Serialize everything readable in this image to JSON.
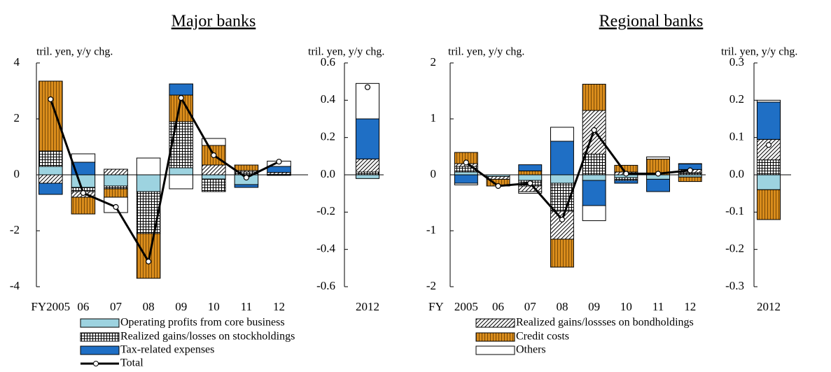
{
  "chart_data": [
    {
      "type": "bar",
      "title": "Major banks",
      "ylabel": "tril. yen, y/y chg.",
      "categories": [
        "FY2005",
        "06",
        "07",
        "08",
        "09",
        "10",
        "11",
        "12"
      ],
      "ylim": [
        -4,
        4
      ],
      "yticks": [
        -4,
        -2,
        0,
        2,
        4
      ],
      "series": [
        {
          "name": "Operating profits from core business",
          "color": "#9dd3e0",
          "values": [
            0.3,
            -0.45,
            -0.4,
            -0.6,
            0.25,
            -0.15,
            -0.35,
            -0.02
          ]
        },
        {
          "name": "Realized gains/losses on stockholdings",
          "color": "#ffffff",
          "pattern": "grid",
          "values": [
            0.55,
            -0.15,
            -0.1,
            -1.5,
            1.65,
            -0.45,
            0.1,
            0.015
          ]
        },
        {
          "name": "Realized gains/lossses on bondholdings",
          "color": "#ffffff",
          "pattern": "hatch",
          "values": [
            -0.3,
            -0.2,
            0.2,
            0,
            0,
            0.35,
            0.05,
            0.07
          ]
        },
        {
          "name": "Credit costs",
          "color": "#d98c1c",
          "pattern": "stripes",
          "values": [
            2.5,
            -0.6,
            -0.3,
            -1.6,
            0.95,
            0.7,
            0.2,
            0
          ]
        },
        {
          "name": "Tax-related expenses",
          "color": "#1f6fc5",
          "values": [
            -0.4,
            0.45,
            0,
            0,
            0.4,
            0,
            -0.1,
            0.215
          ]
        },
        {
          "name": "Others",
          "color": "#ffffff",
          "values": [
            0,
            0.3,
            -0.55,
            0.6,
            -0.5,
            0.25,
            0,
            0.19
          ]
        },
        {
          "name": "Total",
          "type": "line",
          "color": "#000000",
          "values": [
            2.7,
            -0.65,
            -1.15,
            -3.1,
            2.75,
            0.7,
            -0.1,
            0.47
          ]
        }
      ]
    },
    {
      "type": "bar",
      "ylabel": "tril. yen, y/y chg.",
      "categories": [
        "2012"
      ],
      "ylim": [
        -0.6,
        0.6
      ],
      "yticks": [
        -0.6,
        -0.4,
        -0.2,
        {
          "value": 0,
          "label": "0.0"
        },
        0.2,
        0.4,
        0.6
      ],
      "series": [
        {
          "values": [
            -0.02
          ]
        },
        {
          "values": [
            0.015
          ]
        },
        {
          "values": [
            0.07
          ]
        },
        {
          "values": [
            0
          ]
        },
        {
          "values": [
            0.215
          ]
        },
        {
          "values": [
            0.19
          ]
        },
        {
          "type": "line",
          "values": [
            0.47
          ]
        }
      ]
    },
    {
      "type": "bar",
      "title": "Regional banks",
      "ylabel": "tril. yen, y/y chg.",
      "xlabel": "FY",
      "categories": [
        "2005",
        "06",
        "07",
        "08",
        "09",
        "10",
        "11",
        "12"
      ],
      "ylim": [
        -2,
        2
      ],
      "yticks": [
        -2,
        -1,
        0,
        1,
        2
      ],
      "series": [
        {
          "values": [
            0.05,
            -0.03,
            -0.1,
            -0.15,
            -0.1,
            -0.05,
            -0.08,
            -0.04
          ]
        },
        {
          "values": [
            0.1,
            0,
            -0.1,
            -0.5,
            0.37,
            -0.05,
            0,
            0.04
          ]
        },
        {
          "values": [
            0.05,
            -0.05,
            -0.1,
            -0.5,
            0.78,
            0.05,
            0,
            0.055
          ]
        },
        {
          "values": [
            0.2,
            -0.12,
            0.07,
            -0.5,
            0.47,
            0.12,
            0.28,
            -0.08
          ]
        },
        {
          "values": [
            -0.15,
            0,
            0.11,
            0.6,
            -0.45,
            -0.05,
            -0.22,
            0.1
          ]
        },
        {
          "values": [
            -0.03,
            0,
            -0.03,
            0.25,
            -0.27,
            0,
            0.04,
            0.005
          ]
        },
        {
          "type": "line",
          "values": [
            0.22,
            -0.2,
            -0.15,
            -0.8,
            0.8,
            0.02,
            0.02,
            0.08
          ]
        }
      ]
    },
    {
      "type": "bar",
      "ylabel": "tril. yen, y/y chg.",
      "categories": [
        "2012"
      ],
      "ylim": [
        -0.3,
        0.3
      ],
      "yticks": [
        -0.3,
        -0.2,
        -0.1,
        {
          "value": 0,
          "label": "0.0"
        },
        0.1,
        0.2,
        0.3
      ],
      "series": [
        {
          "values": [
            -0.04
          ]
        },
        {
          "values": [
            0.04
          ]
        },
        {
          "values": [
            0.055
          ]
        },
        {
          "values": [
            -0.08
          ]
        },
        {
          "values": [
            0.1
          ]
        },
        {
          "values": [
            0.005
          ]
        },
        {
          "type": "line",
          "values": [
            0.08
          ]
        }
      ]
    }
  ]
}
